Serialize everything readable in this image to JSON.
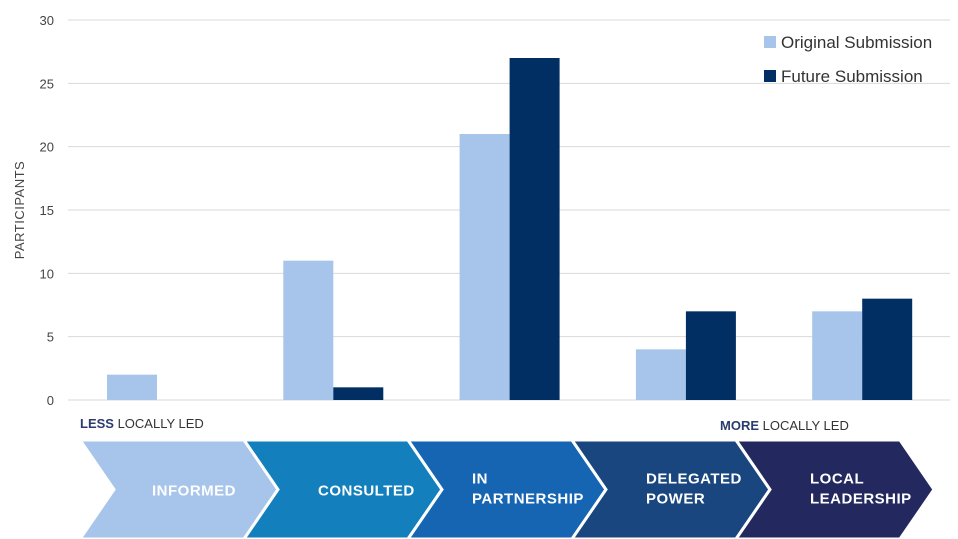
{
  "chart_data": {
    "type": "bar",
    "categories": [
      "INFORMED",
      "CONSULTED",
      "IN PARTNERSHIP",
      "DELEGATED POWER",
      "LOCAL LEADERSHIP"
    ],
    "category_lines": [
      [
        "INFORMED"
      ],
      [
        "CONSULTED"
      ],
      [
        "IN",
        "PARTNERSHIP"
      ],
      [
        "DELEGATED",
        "POWER"
      ],
      [
        "LOCAL",
        "LEADERSHIP"
      ]
    ],
    "series": [
      {
        "name": "Original Submission",
        "values": [
          2,
          11,
          21,
          4,
          7
        ],
        "color": "#a7c4ea"
      },
      {
        "name": "Future Submission",
        "values": [
          0,
          1,
          27,
          7,
          8
        ],
        "color": "#022f63"
      }
    ],
    "ylabel": "PARTICIPANTS",
    "ylim": [
      0,
      30
    ],
    "yticks": [
      0,
      5,
      10,
      15,
      20,
      25,
      30
    ],
    "grid": true,
    "legend_position": "top-right",
    "scale_left": {
      "bold": "LESS",
      "rest": " LOCALLY LED"
    },
    "scale_right": {
      "bold": "MORE",
      "rest": " LOCALLY LED"
    },
    "chevron_colors": [
      "#a7c4ea",
      "#1380bd",
      "#1565b3",
      "#19467f",
      "#23295e"
    ]
  }
}
